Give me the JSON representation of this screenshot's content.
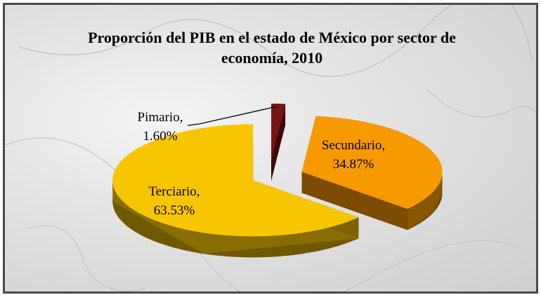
{
  "chart_data": {
    "type": "pie3d",
    "title": "Proporción del PIB en el estado de México por sector de economía, 2010",
    "categories": [
      "Pimario,",
      "Secundario,",
      "Terciario,"
    ],
    "values": [
      1.6,
      34.87,
      63.53
    ],
    "value_labels": [
      "1.60%",
      "34.87%",
      "63.53%"
    ],
    "colors": [
      "#7a1414",
      "#f79a00",
      "#f7c600"
    ]
  }
}
